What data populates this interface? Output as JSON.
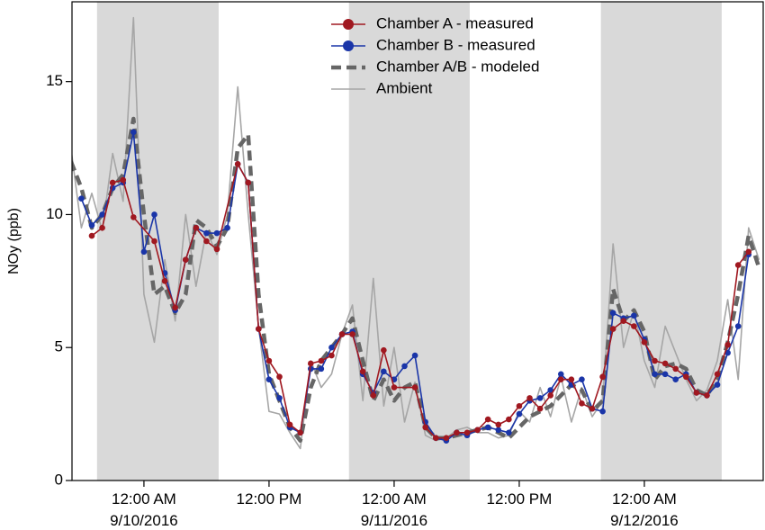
{
  "chart_data": {
    "type": "line",
    "y_label": "NOy (ppb)",
    "xlim": [
      "2016-09-09 17:06",
      "2016-09-12 11:24"
    ],
    "xticks": [
      {
        "value": "2016-09-10 00:00",
        "label": "12:00 AM\n9/10/2016"
      },
      {
        "value": "2016-09-10 12:00",
        "label": "12:00 PM"
      },
      {
        "value": "2016-09-11 00:00",
        "label": "12:00 AM\n9/11/2016"
      },
      {
        "value": "2016-09-11 12:00",
        "label": "12:00 PM"
      },
      {
        "value": "2016-09-12 00:00",
        "label": "12:00 AM\n9/12/2016"
      }
    ],
    "ylim": [
      0,
      18
    ],
    "yticks": [
      0,
      5,
      10,
      15
    ],
    "legend": "upper center",
    "shade_color": "#d9d9d9",
    "shaded_spans": [
      {
        "start": "2016-09-09 19:30",
        "end": "2016-09-10 07:10"
      },
      {
        "start": "2016-09-10 19:40",
        "end": "2016-09-11 07:15"
      },
      {
        "start": "2016-09-11 19:50",
        "end": "2016-09-12 07:25"
      }
    ],
    "series": [
      {
        "name": "Chamber A - measured",
        "color": "#a01820",
        "marker": true,
        "x": [
          "2016-09-09 19:00",
          "2016-09-09 20:00",
          "2016-09-09 21:00",
          "2016-09-09 22:00",
          "2016-09-09 23:00",
          "2016-09-10 01:00",
          "2016-09-10 02:00",
          "2016-09-10 03:00",
          "2016-09-10 04:00",
          "2016-09-10 05:00",
          "2016-09-10 06:00",
          "2016-09-10 07:00",
          "2016-09-10 09:00",
          "2016-09-10 10:00",
          "2016-09-10 11:00",
          "2016-09-10 12:00",
          "2016-09-10 13:00",
          "2016-09-10 14:00",
          "2016-09-10 15:00",
          "2016-09-10 16:00",
          "2016-09-10 17:00",
          "2016-09-10 18:00",
          "2016-09-10 19:00",
          "2016-09-10 20:00",
          "2016-09-10 21:00",
          "2016-09-10 22:00",
          "2016-09-10 23:00",
          "2016-09-11 00:00",
          "2016-09-11 02:00",
          "2016-09-11 03:00",
          "2016-09-11 04:00",
          "2016-09-11 05:00",
          "2016-09-11 06:00",
          "2016-09-11 07:00",
          "2016-09-11 08:00",
          "2016-09-11 09:00",
          "2016-09-11 10:00",
          "2016-09-11 11:00",
          "2016-09-11 12:00",
          "2016-09-11 13:00",
          "2016-09-11 14:00",
          "2016-09-11 15:00",
          "2016-09-11 16:00",
          "2016-09-11 17:00",
          "2016-09-11 18:00",
          "2016-09-11 19:00",
          "2016-09-11 20:00",
          "2016-09-11 21:00",
          "2016-09-11 22:00",
          "2016-09-11 23:00",
          "2016-09-12 00:00",
          "2016-09-12 01:00",
          "2016-09-12 02:00",
          "2016-09-12 03:00",
          "2016-09-12 04:00",
          "2016-09-12 05:00",
          "2016-09-12 06:00",
          "2016-09-12 07:00",
          "2016-09-12 08:00",
          "2016-09-12 09:00",
          "2016-09-12 10:00"
        ],
        "values": [
          9.2,
          9.5,
          11.2,
          11.3,
          9.9,
          9.0,
          7.5,
          6.5,
          8.3,
          9.5,
          9.0,
          8.7,
          11.9,
          11.2,
          5.7,
          4.5,
          3.9,
          2.1,
          1.8,
          4.4,
          4.5,
          4.7,
          5.5,
          5.5,
          4.1,
          3.2,
          4.9,
          3.5,
          3.5,
          2.0,
          1.6,
          1.6,
          1.8,
          1.8,
          1.9,
          2.3,
          2.1,
          2.3,
          2.8,
          3.1,
          2.7,
          3.2,
          3.8,
          3.8,
          2.9,
          2.7,
          3.9,
          5.7,
          6.0,
          5.8,
          5.2,
          4.5,
          4.4,
          4.2,
          3.9,
          3.3,
          3.2,
          4.0,
          5.1,
          8.1,
          8.6
        ]
      },
      {
        "name": "Chamber B - measured",
        "color": "#1a35a8",
        "marker": true,
        "x": [
          "2016-09-09 18:00",
          "2016-09-09 19:00",
          "2016-09-09 20:00",
          "2016-09-09 21:00",
          "2016-09-09 22:00",
          "2016-09-09 23:00",
          "2016-09-10 00:00",
          "2016-09-10 01:00",
          "2016-09-10 02:00",
          "2016-09-10 03:00",
          "2016-09-10 04:00",
          "2016-09-10 05:00",
          "2016-09-10 06:00",
          "2016-09-10 07:00",
          "2016-09-10 08:00",
          "2016-09-10 09:00",
          "2016-09-10 10:00",
          "2016-09-10 11:00",
          "2016-09-10 12:00",
          "2016-09-10 13:00",
          "2016-09-10 14:00",
          "2016-09-10 15:00",
          "2016-09-10 16:00",
          "2016-09-10 17:00",
          "2016-09-10 18:00",
          "2016-09-10 19:00",
          "2016-09-10 20:00",
          "2016-09-10 21:00",
          "2016-09-10 22:00",
          "2016-09-10 23:00",
          "2016-09-11 00:00",
          "2016-09-11 01:00",
          "2016-09-11 02:00",
          "2016-09-11 03:00",
          "2016-09-11 04:00",
          "2016-09-11 05:00",
          "2016-09-11 06:00",
          "2016-09-11 07:00",
          "2016-09-11 08:00",
          "2016-09-11 09:00",
          "2016-09-11 10:00",
          "2016-09-11 11:00",
          "2016-09-11 12:00",
          "2016-09-11 13:00",
          "2016-09-11 14:00",
          "2016-09-11 15:00",
          "2016-09-11 16:00",
          "2016-09-11 17:00",
          "2016-09-11 18:00",
          "2016-09-11 19:00",
          "2016-09-11 20:00",
          "2016-09-11 21:00",
          "2016-09-11 22:00",
          "2016-09-11 23:00",
          "2016-09-12 00:00",
          "2016-09-12 01:00",
          "2016-09-12 02:00",
          "2016-09-12 03:00",
          "2016-09-12 04:00",
          "2016-09-12 05:00",
          "2016-09-12 06:00",
          "2016-09-12 07:00",
          "2016-09-12 08:00",
          "2016-09-12 09:00",
          "2016-09-12 10:00"
        ],
        "values": [
          10.6,
          9.6,
          10.0,
          11.0,
          11.2,
          13.1,
          8.6,
          10.0,
          7.8,
          6.4,
          8.3,
          9.5,
          9.3,
          9.3,
          9.5,
          11.9,
          11.2,
          5.7,
          3.8,
          3.1,
          2.0,
          1.8,
          4.2,
          4.2,
          5.0,
          5.5,
          5.6,
          4.0,
          3.3,
          4.1,
          3.8,
          4.3,
          4.7,
          2.2,
          1.6,
          1.5,
          1.8,
          1.7,
          1.9,
          2.0,
          1.9,
          1.8,
          2.5,
          3.0,
          3.1,
          3.4,
          4.0,
          3.6,
          3.8,
          2.7,
          2.6,
          6.3,
          6.1,
          6.2,
          5.3,
          4.0,
          4.0,
          3.8,
          4.0,
          3.3,
          3.2,
          3.6,
          4.8,
          5.8,
          8.5
        ]
      },
      {
        "name": "Chamber A/B - modeled",
        "color": "#666666",
        "dashed": true,
        "x": [
          "2016-09-09 17:00",
          "2016-09-09 18:00",
          "2016-09-09 19:00",
          "2016-09-09 20:00",
          "2016-09-09 21:00",
          "2016-09-09 22:00",
          "2016-09-09 23:00",
          "2016-09-10 00:00",
          "2016-09-10 01:00",
          "2016-09-10 02:00",
          "2016-09-10 03:00",
          "2016-09-10 04:00",
          "2016-09-10 05:00",
          "2016-09-10 06:00",
          "2016-09-10 07:00",
          "2016-09-10 08:00",
          "2016-09-10 09:00",
          "2016-09-10 10:00",
          "2016-09-10 11:00",
          "2016-09-10 12:00",
          "2016-09-10 13:00",
          "2016-09-10 14:00",
          "2016-09-10 15:00",
          "2016-09-10 16:00",
          "2016-09-10 17:00",
          "2016-09-10 18:00",
          "2016-09-10 19:00",
          "2016-09-10 20:00",
          "2016-09-10 21:00",
          "2016-09-10 22:00",
          "2016-09-10 23:00",
          "2016-09-11 00:00",
          "2016-09-11 01:00",
          "2016-09-11 02:00",
          "2016-09-11 03:00",
          "2016-09-11 04:00",
          "2016-09-11 05:00",
          "2016-09-11 06:00",
          "2016-09-11 07:00",
          "2016-09-11 08:00",
          "2016-09-11 09:00",
          "2016-09-11 10:00",
          "2016-09-11 11:00",
          "2016-09-11 12:00",
          "2016-09-11 13:00",
          "2016-09-11 14:00",
          "2016-09-11 15:00",
          "2016-09-11 16:00",
          "2016-09-11 17:00",
          "2016-09-11 18:00",
          "2016-09-11 19:00",
          "2016-09-11 20:00",
          "2016-09-11 21:00",
          "2016-09-11 22:00",
          "2016-09-11 23:00",
          "2016-09-12 00:00",
          "2016-09-12 01:00",
          "2016-09-12 02:00",
          "2016-09-12 03:00",
          "2016-09-12 04:00",
          "2016-09-12 05:00",
          "2016-09-12 06:00",
          "2016-09-12 07:00",
          "2016-09-12 08:00",
          "2016-09-12 09:00",
          "2016-09-12 10:00",
          "2016-09-12 11:00"
        ],
        "values": [
          12.0,
          11.0,
          9.5,
          10.0,
          11.0,
          11.5,
          13.6,
          10.0,
          7.0,
          7.3,
          6.3,
          7.0,
          9.8,
          9.5,
          8.8,
          9.5,
          12.5,
          13.0,
          7.0,
          4.0,
          3.0,
          2.0,
          1.5,
          3.5,
          4.5,
          5.0,
          5.5,
          6.1,
          4.5,
          3.0,
          3.8,
          3.0,
          3.5,
          3.7,
          2.0,
          1.6,
          1.6,
          1.7,
          1.8,
          1.9,
          2.0,
          1.8,
          1.6,
          2.0,
          2.4,
          2.6,
          2.8,
          3.2,
          3.6,
          3.4,
          2.6,
          3.0,
          7.2,
          6.0,
          6.4,
          5.6,
          3.8,
          4.3,
          4.4,
          4.2,
          3.4,
          3.2,
          3.8,
          5.2,
          7.0,
          9.2,
          8.0
        ]
      },
      {
        "name": "Ambient",
        "color": "#a6a6a6",
        "x": [
          "2016-09-09 17:00",
          "2016-09-09 18:00",
          "2016-09-09 19:00",
          "2016-09-09 20:00",
          "2016-09-09 21:00",
          "2016-09-09 22:00",
          "2016-09-09 23:00",
          "2016-09-10 00:00",
          "2016-09-10 01:00",
          "2016-09-10 02:00",
          "2016-09-10 03:00",
          "2016-09-10 04:00",
          "2016-09-10 05:00",
          "2016-09-10 06:00",
          "2016-09-10 07:00",
          "2016-09-10 08:00",
          "2016-09-10 09:00",
          "2016-09-10 10:00",
          "2016-09-10 11:00",
          "2016-09-10 12:00",
          "2016-09-10 13:00",
          "2016-09-10 14:00",
          "2016-09-10 15:00",
          "2016-09-10 16:00",
          "2016-09-10 17:00",
          "2016-09-10 18:00",
          "2016-09-10 19:00",
          "2016-09-10 20:00",
          "2016-09-10 21:00",
          "2016-09-10 22:00",
          "2016-09-10 23:00",
          "2016-09-11 00:00",
          "2016-09-11 01:00",
          "2016-09-11 02:00",
          "2016-09-11 03:00",
          "2016-09-11 04:00",
          "2016-09-11 05:00",
          "2016-09-11 06:00",
          "2016-09-11 07:00",
          "2016-09-11 08:00",
          "2016-09-11 09:00",
          "2016-09-11 10:00",
          "2016-09-11 11:00",
          "2016-09-11 12:00",
          "2016-09-11 13:00",
          "2016-09-11 14:00",
          "2016-09-11 15:00",
          "2016-09-11 16:00",
          "2016-09-11 17:00",
          "2016-09-11 18:00",
          "2016-09-11 19:00",
          "2016-09-11 20:00",
          "2016-09-11 21:00",
          "2016-09-11 22:00",
          "2016-09-11 23:00",
          "2016-09-12 00:00",
          "2016-09-12 01:00",
          "2016-09-12 02:00",
          "2016-09-12 03:00",
          "2016-09-12 04:00",
          "2016-09-12 05:00",
          "2016-09-12 06:00",
          "2016-09-12 07:00",
          "2016-09-12 08:00",
          "2016-09-12 09:00",
          "2016-09-12 10:00",
          "2016-09-12 11:00"
        ],
        "values": [
          12.5,
          9.5,
          10.8,
          9.4,
          12.3,
          10.5,
          17.4,
          7.0,
          5.2,
          8.3,
          6.0,
          10.0,
          7.3,
          9.4,
          8.5,
          10.0,
          14.8,
          10.0,
          5.8,
          2.6,
          2.5,
          1.8,
          1.2,
          4.5,
          3.5,
          4.0,
          5.5,
          6.6,
          3.0,
          7.6,
          2.8,
          5.0,
          2.2,
          3.7,
          1.7,
          1.5,
          1.6,
          1.9,
          2.0,
          1.8,
          1.8,
          1.6,
          1.7,
          2.6,
          2.2,
          3.5,
          2.4,
          3.9,
          2.2,
          3.5,
          2.4,
          3.0,
          8.9,
          5.0,
          6.4,
          4.5,
          3.5,
          5.8,
          4.8,
          3.8,
          3.0,
          3.4,
          4.5,
          6.8,
          3.8,
          9.5,
          8.3
        ]
      }
    ]
  }
}
